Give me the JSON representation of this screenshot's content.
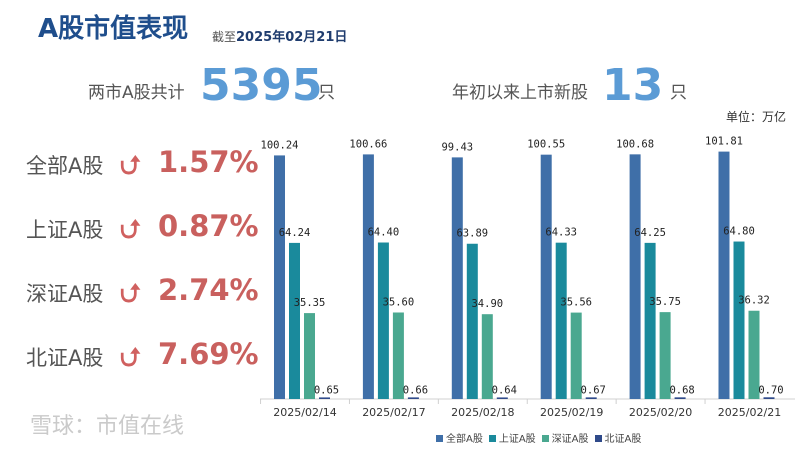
{
  "header": {
    "title": "A股市值表现",
    "asof_prefix": "截至",
    "asof_date": "2025年02月21日"
  },
  "summary": {
    "total_label": "两市A股共计",
    "total_value": "5395",
    "total_unit": "只",
    "new_label": "年初以来上市新股",
    "new_value": "13",
    "new_unit": "只",
    "unit_label": "单位：万亿"
  },
  "changes": [
    {
      "name": "全部A股",
      "pct": "1.57%",
      "direction": "up"
    },
    {
      "name": "上证A股",
      "pct": "0.87%",
      "direction": "up"
    },
    {
      "name": "深证A股",
      "pct": "2.74%",
      "direction": "up"
    },
    {
      "name": "北证A股",
      "pct": "7.69%",
      "direction": "up"
    }
  ],
  "icons": {
    "up": "arrow-up-curved-icon"
  },
  "watermark": "雪球：市值在线",
  "chart_data": {
    "type": "bar",
    "categories": [
      "2025/02/14",
      "2025/02/17",
      "2025/02/18",
      "2025/02/19",
      "2025/02/20",
      "2025/02/21"
    ],
    "series": [
      {
        "name": "全部A股",
        "color": "#3f6fa8",
        "values": [
          100.24,
          100.66,
          99.43,
          100.55,
          100.68,
          101.81
        ]
      },
      {
        "name": "上证A股",
        "color": "#1a8a9c",
        "values": [
          64.24,
          64.4,
          63.89,
          64.33,
          64.25,
          64.8
        ]
      },
      {
        "name": "深证A股",
        "color": "#4aa890",
        "values": [
          35.35,
          35.6,
          34.9,
          35.56,
          35.75,
          36.32
        ]
      },
      {
        "name": "北证A股",
        "color": "#2f4a8a",
        "values": [
          0.65,
          0.66,
          0.64,
          0.67,
          0.68,
          0.7
        ]
      }
    ],
    "ylim": [
      0,
      102
    ],
    "grid": false,
    "legend": "bottom",
    "data_labels": true
  }
}
